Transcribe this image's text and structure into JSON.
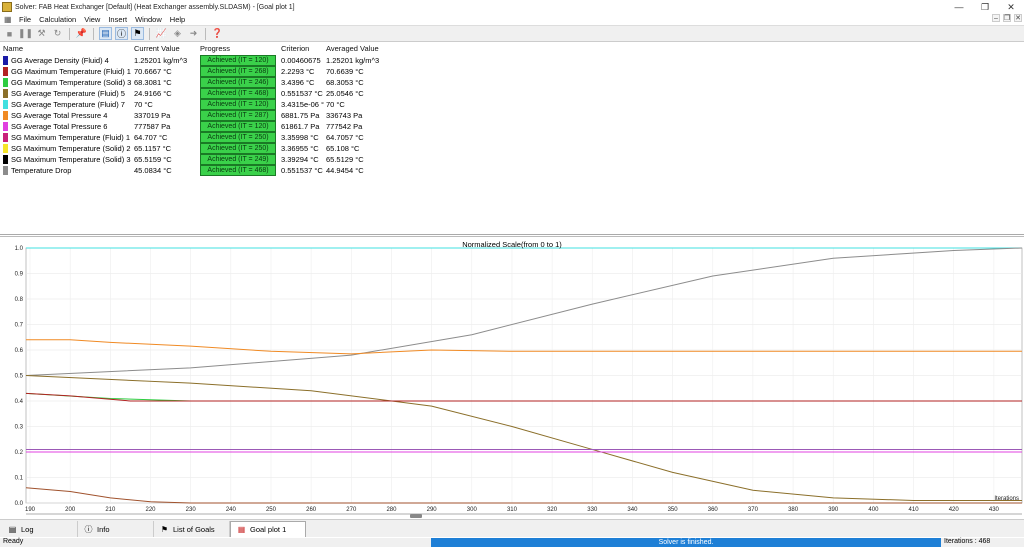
{
  "window": {
    "title": "Solver: FAB Heat Exchanger [Default] (Heat Exchanger assembly.SLDASM) - [Goal plot 1]"
  },
  "menu": [
    "File",
    "Calculation",
    "View",
    "Insert",
    "Window",
    "Help"
  ],
  "table": {
    "headers": {
      "name": "Name",
      "current": "Current Value",
      "progress": "Progress",
      "criterion": "Criterion",
      "averaged": "Averaged Value"
    },
    "rows": [
      {
        "color": "#1a1aa6",
        "name": "GG Average Density (Fluid) 4",
        "current": "1.25201 kg/m^3",
        "progress": "Achieved (IT = 120)",
        "criterion": "0.00460675",
        "averaged": "1.25201 kg/m^3"
      },
      {
        "color": "#b22222",
        "name": "GG Maximum Temperature (Fluid) 1",
        "current": "70.6667 °C",
        "progress": "Achieved (IT = 268)",
        "criterion": "2.2293 °C",
        "averaged": "70.6639 °C"
      },
      {
        "color": "#2ecc40",
        "name": "GG Maximum Temperature (Solid) 3",
        "current": "68.3081 °C",
        "progress": "Achieved (IT = 246)",
        "criterion": "3.4396 °C",
        "averaged": "68.3053 °C"
      },
      {
        "color": "#8b6f2a",
        "name": "SG Average Temperature (Fluid) 5",
        "current": "24.9166 °C",
        "progress": "Achieved (IT = 468)",
        "criterion": "0.551537 °C",
        "averaged": "25.0546 °C"
      },
      {
        "color": "#40e0e0",
        "name": "SG Average Temperature (Fluid) 7",
        "current": "70 °C",
        "progress": "Achieved (IT = 120)",
        "criterion": "3.4315e-06 °",
        "averaged": "70 °C"
      },
      {
        "color": "#f08a24",
        "name": "SG Average Total Pressure 4",
        "current": "337019 Pa",
        "progress": "Achieved (IT = 287)",
        "criterion": "6881.75 Pa",
        "averaged": "336743 Pa"
      },
      {
        "color": "#e040e0",
        "name": "SG Average Total Pressure 6",
        "current": "777587 Pa",
        "progress": "Achieved (IT = 120)",
        "criterion": "61861.7 Pa",
        "averaged": "777542 Pa"
      },
      {
        "color": "#c8207a",
        "name": "SG Maximum Temperature (Fluid) 1",
        "current": "64.707 °C",
        "progress": "Achieved (IT = 250)",
        "criterion": "3.35998 °C",
        "averaged": "64.7057 °C"
      },
      {
        "color": "#f5e52a",
        "name": "SG Maximum Temperature (Solid) 2",
        "current": "65.1157 °C",
        "progress": "Achieved (IT = 250)",
        "criterion": "3.36955 °C",
        "averaged": "65.108 °C"
      },
      {
        "color": "#000000",
        "name": "SG Maximum Temperature (Solid) 3",
        "current": "65.5159 °C",
        "progress": "Achieved (IT = 249)",
        "criterion": "3.39294 °C",
        "averaged": "65.5129 °C"
      },
      {
        "color": "#8c8c8c",
        "name": "Temperature Drop",
        "current": "45.0834 °C",
        "progress": "Achieved (IT = 468)",
        "criterion": "0.551537 °C",
        "averaged": "44.9454 °C"
      }
    ]
  },
  "chart_data": {
    "type": "line",
    "title": "Normalized Scale(from 0 to 1)",
    "xlabel": "Iterations",
    "xlim": [
      189,
      437
    ],
    "ylim": [
      0,
      1
    ],
    "xticks": [
      190,
      200,
      210,
      220,
      230,
      240,
      250,
      260,
      270,
      280,
      290,
      300,
      310,
      320,
      330,
      340,
      350,
      360,
      370,
      380,
      390,
      400,
      410,
      420,
      430
    ],
    "yticks": [
      0.0,
      0.1,
      0.2,
      0.3,
      0.4,
      0.5,
      0.6,
      0.7,
      0.8,
      0.9,
      1.0
    ],
    "ytick_labels": [
      "0.0",
      "0.1",
      "0.2",
      "0.3",
      "0.4",
      "0.5",
      "0.6",
      "0.7",
      "0.8",
      "0.9",
      "1.0"
    ],
    "grid": true,
    "series": [
      {
        "color": "#40e0e0",
        "x": [
          189,
          437
        ],
        "y": [
          1.0,
          1.0
        ]
      },
      {
        "color": "#8c8c8c",
        "x": [
          189,
          230,
          270,
          300,
          330,
          360,
          390,
          420,
          437
        ],
        "y": [
          0.5,
          0.53,
          0.58,
          0.66,
          0.78,
          0.89,
          0.96,
          0.99,
          1.0
        ]
      },
      {
        "color": "#f08a24",
        "x": [
          189,
          200,
          210,
          230,
          250,
          270,
          290,
          310,
          350,
          400,
          437
        ],
        "y": [
          0.64,
          0.64,
          0.63,
          0.615,
          0.595,
          0.585,
          0.6,
          0.595,
          0.595,
          0.595,
          0.595
        ]
      },
      {
        "color": "#2ecc40",
        "x": [
          189,
          210,
          230,
          250,
          437
        ],
        "y": [
          0.43,
          0.41,
          0.4,
          0.4,
          0.4
        ]
      },
      {
        "color": "#8b6f2a",
        "x": [
          189,
          230,
          260,
          290,
          310,
          330,
          350,
          370,
          390,
          410,
          437
        ],
        "y": [
          0.5,
          0.47,
          0.44,
          0.38,
          0.3,
          0.21,
          0.12,
          0.05,
          0.02,
          0.01,
          0.01
        ]
      },
      {
        "color": "#b22222",
        "x": [
          189,
          200,
          215,
          230,
          437
        ],
        "y": [
          0.43,
          0.42,
          0.4,
          0.4,
          0.4
        ]
      },
      {
        "color": "#9b59b6",
        "x": [
          189,
          437
        ],
        "y": [
          0.21,
          0.21
        ]
      },
      {
        "color": "#e040e0",
        "x": [
          189,
          437
        ],
        "y": [
          0.2,
          0.2
        ]
      },
      {
        "color": "#a0522d",
        "x": [
          189,
          200,
          210,
          220,
          230,
          437
        ],
        "y": [
          0.06,
          0.045,
          0.02,
          0.005,
          0.0,
          0.0
        ]
      }
    ]
  },
  "tabs": [
    {
      "label": "Log",
      "icon": "log-icon",
      "active": false
    },
    {
      "label": "Info",
      "icon": "info-icon",
      "active": false
    },
    {
      "label": "List of Goals",
      "icon": "goals-icon",
      "active": false
    },
    {
      "label": "Goal plot 1",
      "icon": "plot-icon",
      "active": true
    }
  ],
  "status": {
    "left": "Ready",
    "middle": "Solver is finished.",
    "right": "Iterations : 468"
  }
}
